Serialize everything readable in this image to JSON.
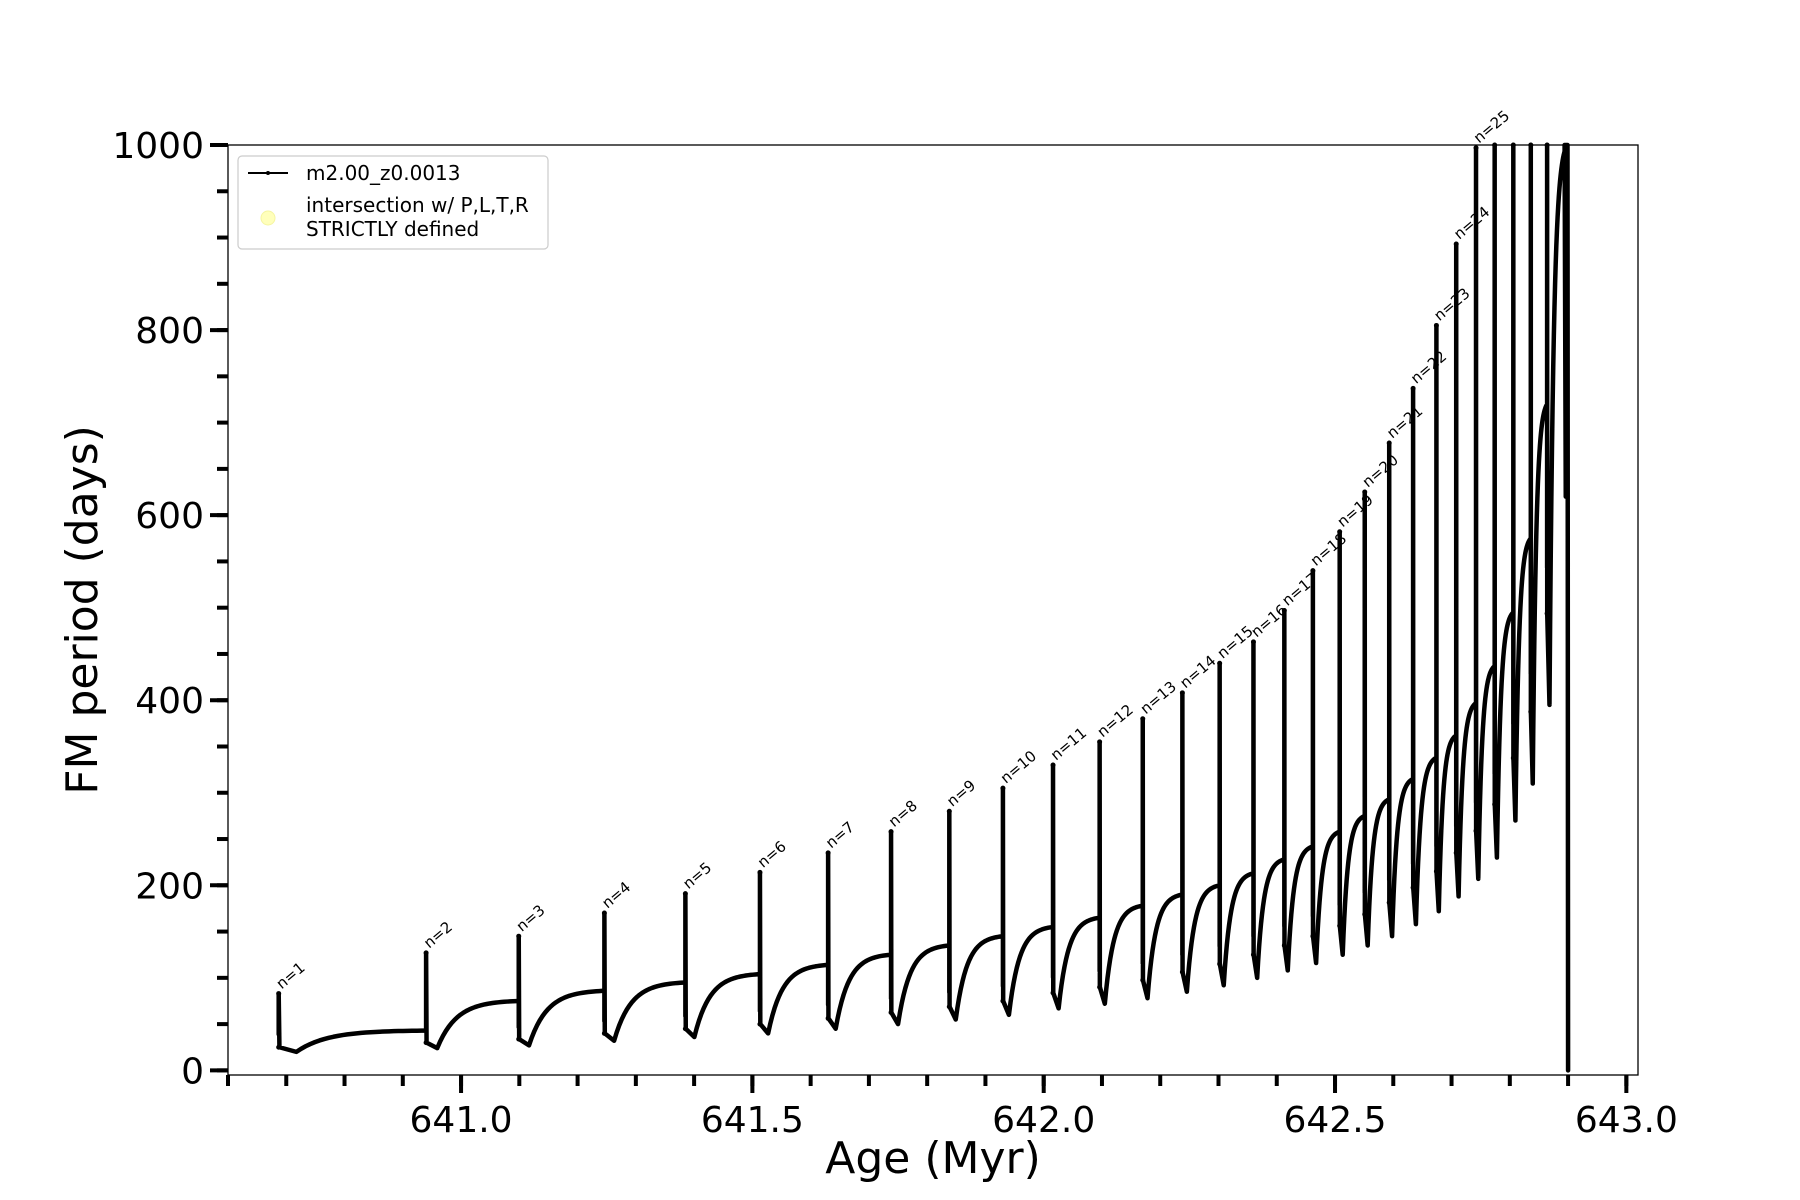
{
  "chart_data": {
    "type": "line",
    "xlabel": "Age (Myr)",
    "ylabel": "FM period (days)",
    "xlim": [
      640.6,
      643.02
    ],
    "ylim": [
      -5,
      1000
    ],
    "x_ticks": [
      641.0,
      641.5,
      642.0,
      642.5,
      643.0
    ],
    "x_tick_labels": [
      "641.0",
      "641.5",
      "642.0",
      "642.5",
      "643.0"
    ],
    "x_minor_step": 0.1,
    "y_ticks": [
      0,
      200,
      400,
      600,
      800,
      1000
    ],
    "y_tick_labels": [
      "0",
      "200",
      "400",
      "600",
      "800",
      "1000"
    ],
    "y_minor_step": 50,
    "grid": false,
    "legend": {
      "placement": "upper-left",
      "entries": [
        {
          "label": "m2.00_z0.0013",
          "color": "#000000",
          "marker": "line"
        },
        {
          "label": "intersection w/ P,L,T,R\nSTRICTLY defined",
          "color": "#ffffbb",
          "marker": "circle"
        }
      ]
    },
    "series": [
      {
        "name": "m2.00_z0.0013",
        "color": "#000000",
        "pulses": [
          {
            "n": 1,
            "x": 640.687,
            "peak": 83,
            "min": 20,
            "end": 43
          },
          {
            "n": 2,
            "x": 640.94,
            "peak": 127,
            "min": 24,
            "end": 75
          },
          {
            "n": 3,
            "x": 641.099,
            "peak": 145,
            "min": 27,
            "end": 86
          },
          {
            "n": 4,
            "x": 641.246,
            "peak": 170,
            "min": 32,
            "end": 95
          },
          {
            "n": 5,
            "x": 641.385,
            "peak": 191,
            "min": 36,
            "end": 104
          },
          {
            "n": 6,
            "x": 641.513,
            "peak": 214,
            "min": 40,
            "end": 114
          },
          {
            "n": 7,
            "x": 641.63,
            "peak": 235,
            "min": 45,
            "end": 125
          },
          {
            "n": 8,
            "x": 641.738,
            "peak": 258,
            "min": 50,
            "end": 135
          },
          {
            "n": 9,
            "x": 641.838,
            "peak": 280,
            "min": 55,
            "end": 145
          },
          {
            "n": 10,
            "x": 641.93,
            "peak": 305,
            "min": 60,
            "end": 155
          },
          {
            "n": 11,
            "x": 642.016,
            "peak": 330,
            "min": 67,
            "end": 165
          },
          {
            "n": 12,
            "x": 642.096,
            "peak": 355,
            "min": 72,
            "end": 178
          },
          {
            "n": 13,
            "x": 642.17,
            "peak": 380,
            "min": 78,
            "end": 190
          },
          {
            "n": 14,
            "x": 642.238,
            "peak": 408,
            "min": 85,
            "end": 200
          },
          {
            "n": 15,
            "x": 642.302,
            "peak": 440,
            "min": 92,
            "end": 213
          },
          {
            "n": 16,
            "x": 642.36,
            "peak": 463,
            "min": 100,
            "end": 228
          },
          {
            "n": 17,
            "x": 642.413,
            "peak": 497,
            "min": 108,
            "end": 242
          },
          {
            "n": 18,
            "x": 642.462,
            "peak": 540,
            "min": 116,
            "end": 258
          },
          {
            "n": 19,
            "x": 642.508,
            "peak": 582,
            "min": 125,
            "end": 275
          },
          {
            "n": 20,
            "x": 642.551,
            "peak": 625,
            "min": 135,
            "end": 293
          },
          {
            "n": 21,
            "x": 642.593,
            "peak": 678,
            "min": 145,
            "end": 315
          },
          {
            "n": 22,
            "x": 642.634,
            "peak": 737,
            "min": 158,
            "end": 338
          },
          {
            "n": 23,
            "x": 642.674,
            "peak": 805,
            "min": 172,
            "end": 362
          },
          {
            "n": 24,
            "x": 642.708,
            "peak": 893,
            "min": 188,
            "end": 397
          },
          {
            "n": 25,
            "x": 642.742,
            "peak": 997,
            "min": 207,
            "end": 437
          },
          {
            "x": 642.774,
            "peak": 1000,
            "min": 230,
            "end": 495
          },
          {
            "x": 642.806,
            "peak": 1000,
            "min": 270,
            "end": 575
          },
          {
            "x": 642.836,
            "peak": 1000,
            "min": 310,
            "end": 720
          },
          {
            "x": 642.864,
            "peak": 1000,
            "min": 395,
            "end": 1000
          }
        ],
        "final_drop": {
          "x": 642.898,
          "min": 0
        }
      }
    ]
  }
}
